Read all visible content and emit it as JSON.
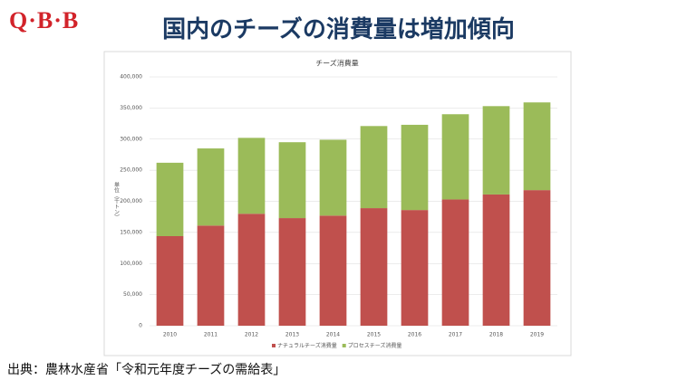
{
  "header": {
    "logo": "Q·B·B",
    "title": "国内のチーズの消費量は増加傾向"
  },
  "chart_data": {
    "type": "stacked-bar",
    "title": "チーズ消費量",
    "ylabel": "単位（千トン）",
    "categories": [
      "2010",
      "2011",
      "2012",
      "2013",
      "2014",
      "2015",
      "2016",
      "2017",
      "2018",
      "2019"
    ],
    "series": [
      {
        "name": "ナチュラルチーズ消費量",
        "color": "#c0504d",
        "values": [
          144000,
          161000,
          180000,
          173000,
          177000,
          189000,
          186000,
          203000,
          211000,
          218000
        ]
      },
      {
        "name": "プロセスチーズ消費量",
        "color": "#9bbb59",
        "values": [
          118000,
          124000,
          122000,
          122000,
          122000,
          132000,
          137000,
          137000,
          142000,
          141000
        ]
      }
    ],
    "ylim": [
      0,
      400000
    ],
    "yticks": [
      {
        "value": 0,
        "label": "0"
      },
      {
        "value": 50000,
        "label": "50,000"
      },
      {
        "value": 100000,
        "label": "100,000"
      },
      {
        "value": 150000,
        "label": "150,000"
      },
      {
        "value": 200000,
        "label": "200,000"
      },
      {
        "value": 250000,
        "label": "250,000"
      },
      {
        "value": 300000,
        "label": "300,000"
      },
      {
        "value": 350000,
        "label": "350,000"
      },
      {
        "value": 400000,
        "label": "400,000"
      }
    ],
    "grid": true,
    "legend": "bottom"
  },
  "footer": {
    "source": "出典：農林水産省「令和元年度チーズの需給表」"
  }
}
